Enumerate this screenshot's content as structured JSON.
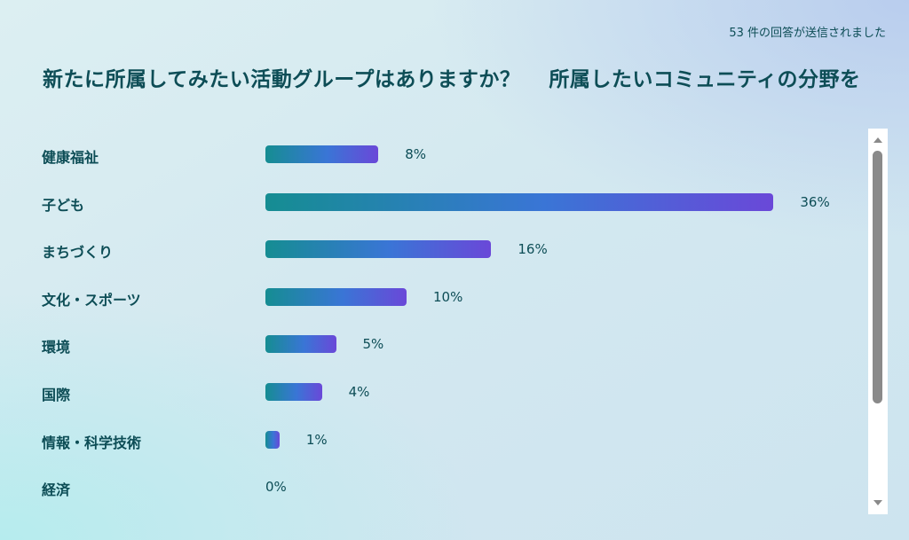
{
  "header": {
    "response_count": "53 件の回答が送信されました",
    "title": "新たに所属してみたい活動グループはありますか？　 所属したいコミュニティの分野を"
  },
  "chart_data": {
    "type": "bar",
    "orientation": "horizontal",
    "categories": [
      "健康福祉",
      "子ども",
      "まちづくり",
      "文化・スポーツ",
      "環境",
      "国際",
      "情報・科学技術",
      "経済"
    ],
    "values": [
      8,
      36,
      16,
      10,
      5,
      4,
      1,
      0
    ],
    "value_labels": [
      "8%",
      "36%",
      "16%",
      "10%",
      "5%",
      "4%",
      "1%",
      "0%"
    ],
    "unit": "%",
    "colors": {
      "bar_start": "#158d92",
      "bar_mid": "#3a75d6",
      "bar_end": "#6a48d8",
      "text": "#0d4d56"
    }
  }
}
